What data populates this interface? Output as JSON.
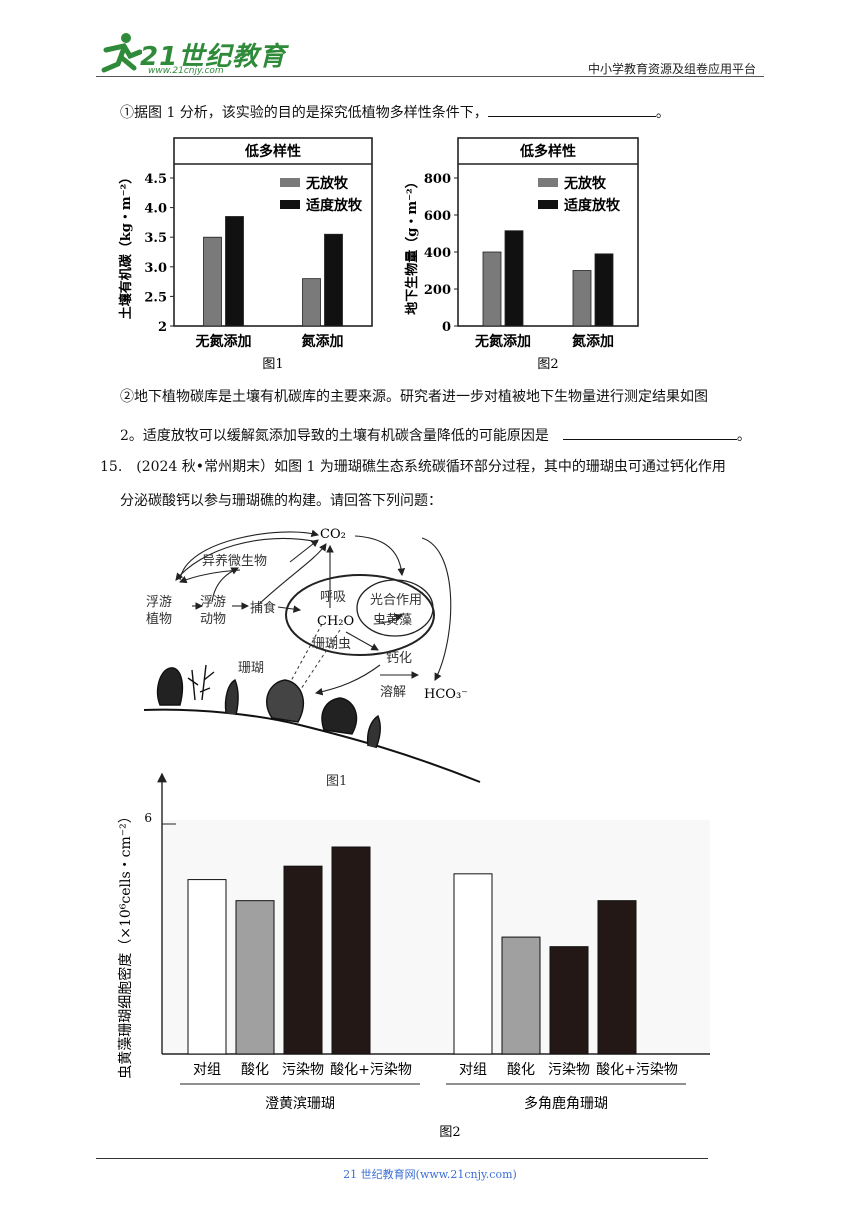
{
  "header": {
    "logo_text": "21世纪教育",
    "logo_url": "www.21cnjy.com",
    "right_text": "中小学教育资源及组卷应用平台"
  },
  "q14": {
    "part1": "①据图 1 分析，该实验的目的是探究低植物多样性条件下，",
    "part1_end": "。",
    "part2_line1": "②地下植物碳库是土壤有机碳库的主要来源。研究者进一步对植被地下生物量进行测定结果如图",
    "part2_line2": "2。适度放牧可以缓解氮添加导致的土壤有机碳含量降低的可能原因是",
    "part2_end": "。"
  },
  "chart_data": [
    {
      "type": "bar",
      "title": "低多样性",
      "ylabel": "土壤有机碳（kg・m⁻²）",
      "ylim": [
        2,
        4.5
      ],
      "yticks": [
        "2",
        "2.5",
        "3.0",
        "3.5",
        "4.0",
        "4.5"
      ],
      "categories": [
        "无氮添加",
        "氮添加"
      ],
      "series": [
        {
          "name": "无放牧",
          "values": [
            3.5,
            2.8
          ],
          "color": "#7a7a7a"
        },
        {
          "name": "适度放牧",
          "values": [
            3.85,
            3.55
          ],
          "color": "#111111"
        }
      ],
      "caption": "图1"
    },
    {
      "type": "bar",
      "title": "低多样性",
      "ylabel": "地下生物量（g・m⁻²）",
      "ylim": [
        0,
        800
      ],
      "yticks": [
        "0",
        "200",
        "400",
        "600",
        "800"
      ],
      "categories": [
        "无氮添加",
        "氮添加"
      ],
      "series": [
        {
          "name": "无放牧",
          "values": [
            400,
            300
          ],
          "color": "#7a7a7a"
        },
        {
          "name": "适度放牧",
          "values": [
            515,
            390
          ],
          "color": "#111111"
        }
      ],
      "caption": "图2"
    },
    {
      "type": "bar",
      "ylabel": "虫黄藻珊瑚细胞密度（×10⁶cells・cm⁻²）",
      "ylim": [
        0,
        6
      ],
      "yticks": [
        "6"
      ],
      "groups": [
        "澄黄滨珊瑚",
        "多角鹿角珊瑚"
      ],
      "categories": [
        "对组",
        "酸化",
        "污染物",
        "酸化+污染物"
      ],
      "category_colors": [
        "#ffffff",
        "#a0a0a0",
        "#231816",
        "#231816"
      ],
      "values": [
        [
          4.55,
          4.0,
          4.9,
          5.4
        ],
        [
          4.7,
          3.05,
          2.8,
          4.0
        ]
      ],
      "caption": "图2"
    }
  ],
  "q15": {
    "line1": "15.　(2024 秋•常州期末）如图 1 为珊瑚礁生态系统碳循环部分过程，其中的珊瑚虫可通过钙化作用",
    "line2": "分泌碳酸钙以参与珊瑚礁的构建。请回答下列问题："
  },
  "diagram": {
    "co2": "CO₂",
    "heterotroph": "异养微生物",
    "phytoplankton": "浮游\n植物",
    "zooplankton": "浮游\n动物",
    "predation": "捕食",
    "respiration": "呼吸",
    "photosynthesis": "光合作用",
    "zooxanthellae": "虫黄藻",
    "ch2o": "CH₂O",
    "coral_polyp": "珊瑚虫",
    "calcification": "钙化",
    "coral": "珊瑚",
    "dissolution": "溶解",
    "hco3": "HCO₃⁻",
    "caption": "图1"
  },
  "footer": {
    "text": "21 世纪教育网(www.21cnjy.com)"
  }
}
